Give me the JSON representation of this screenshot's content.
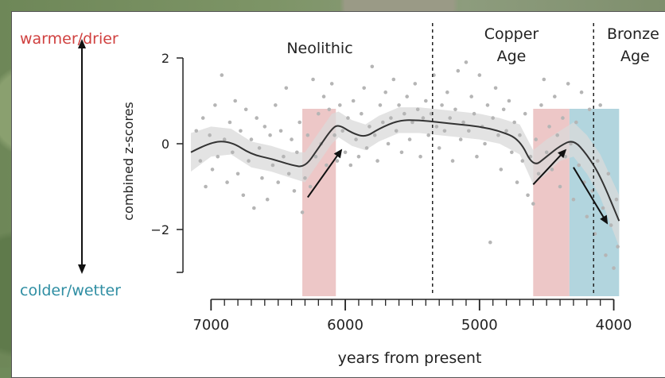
{
  "side_labels": {
    "top": "warmer/drier",
    "bottom": "colder/wetter"
  },
  "period_labels": {
    "neolithic": "Neolithic",
    "copper_line1": "Copper",
    "copper_line2": "Age",
    "bronze_line1": "Bronze",
    "bronze_line2": "Age"
  },
  "colors": {
    "warm_band": "#e8b9b9",
    "cold_band": "#9fcad6",
    "ci_band": "#d9d9d9",
    "points": "#b5b5b5",
    "line": "#333333",
    "warm_text": "#d0403f",
    "cold_text": "#2f8ea3"
  },
  "chart_data": {
    "type": "scatter",
    "xlabel": "years from present",
    "ylabel": "combined z-scores",
    "xlim": [
      7150,
      3950
    ],
    "ylim": [
      -3.0,
      2.0
    ],
    "x_ticks": [
      7000,
      6000,
      5000,
      4000
    ],
    "y_ticks": [
      2,
      0,
      -2
    ],
    "x_tick_labels": [
      "7000",
      "6000",
      "5000",
      "4000"
    ],
    "y_tick_labels": [
      "2",
      "0",
      "−2"
    ],
    "period_boundaries": [
      5350,
      4150
    ],
    "shaded_intervals": [
      {
        "kind": "warming",
        "from": 6320,
        "to": 6070
      },
      {
        "kind": "warming",
        "from": 4600,
        "to": 4330
      },
      {
        "kind": "cooling",
        "from": 4330,
        "to": 3960
      }
    ],
    "smooth_line": {
      "x": [
        7150,
        7000,
        6850,
        6700,
        6550,
        6400,
        6300,
        6200,
        6100,
        6050,
        5950,
        5850,
        5750,
        5600,
        5450,
        5300,
        5150,
        5000,
        4850,
        4700,
        4600,
        4500,
        4400,
        4300,
        4200,
        4100,
        3960
      ],
      "y": [
        -0.2,
        0.05,
        0.05,
        -0.25,
        -0.35,
        -0.5,
        -0.55,
        -0.1,
        0.35,
        0.45,
        0.25,
        0.15,
        0.35,
        0.55,
        0.55,
        0.5,
        0.45,
        0.4,
        0.3,
        0.1,
        -0.55,
        -0.3,
        -0.05,
        0.1,
        -0.25,
        -0.75,
        -1.8
      ]
    },
    "ci_halfwidth": [
      0.45,
      0.35,
      0.3,
      0.3,
      0.3,
      0.3,
      0.35,
      0.35,
      0.35,
      0.3,
      0.3,
      0.3,
      0.3,
      0.3,
      0.3,
      0.3,
      0.3,
      0.3,
      0.3,
      0.35,
      0.4,
      0.4,
      0.35,
      0.4,
      0.45,
      0.5,
      0.6
    ],
    "arrows": [
      {
        "from": [
          6280,
          -1.25
        ],
        "to": [
          6030,
          -0.15
        ]
      },
      {
        "from": [
          4600,
          -0.95
        ],
        "to": [
          4360,
          -0.15
        ]
      },
      {
        "from": [
          4300,
          -0.55
        ],
        "to": [
          4050,
          -1.85
        ]
      }
    ],
    "points": [
      [
        7110,
        0.3
      ],
      [
        7080,
        -0.4
      ],
      [
        7060,
        0.6
      ],
      [
        7040,
        -1.0
      ],
      [
        7010,
        0.2
      ],
      [
        6990,
        -0.6
      ],
      [
        6970,
        0.9
      ],
      [
        6950,
        -0.3
      ],
      [
        6920,
        1.6
      ],
      [
        6900,
        0.1
      ],
      [
        6880,
        -0.9
      ],
      [
        6860,
        0.5
      ],
      [
        6840,
        -0.2
      ],
      [
        6820,
        1.0
      ],
      [
        6800,
        -0.7
      ],
      [
        6780,
        0.3
      ],
      [
        6760,
        -1.2
      ],
      [
        6740,
        0.8
      ],
      [
        6720,
        -0.4
      ],
      [
        6700,
        0.1
      ],
      [
        6680,
        -1.5
      ],
      [
        6660,
        0.6
      ],
      [
        6640,
        -0.1
      ],
      [
        6620,
        -0.8
      ],
      [
        6600,
        0.4
      ],
      [
        6580,
        -1.3
      ],
      [
        6560,
        0.2
      ],
      [
        6540,
        -0.5
      ],
      [
        6520,
        0.9
      ],
      [
        6500,
        -0.9
      ],
      [
        6480,
        0.3
      ],
      [
        6460,
        -0.3
      ],
      [
        6440,
        1.3
      ],
      [
        6420,
        -0.7
      ],
      [
        6400,
        0.1
      ],
      [
        6380,
        -1.1
      ],
      [
        6360,
        -0.2
      ],
      [
        6340,
        0.5
      ],
      [
        6320,
        -1.6
      ],
      [
        6300,
        -0.8
      ],
      [
        6280,
        0.2
      ],
      [
        6260,
        -1.0
      ],
      [
        6240,
        1.5
      ],
      [
        6220,
        -0.3
      ],
      [
        6200,
        0.7
      ],
      [
        6180,
        0.0
      ],
      [
        6160,
        1.1
      ],
      [
        6140,
        -0.5
      ],
      [
        6120,
        0.8
      ],
      [
        6100,
        1.4
      ],
      [
        6080,
        0.2
      ],
      [
        6060,
        -0.4
      ],
      [
        6040,
        0.9
      ],
      [
        6020,
        0.3
      ],
      [
        6000,
        -0.2
      ],
      [
        5980,
        0.6
      ],
      [
        5960,
        -0.5
      ],
      [
        5940,
        1.0
      ],
      [
        5920,
        0.1
      ],
      [
        5900,
        -0.3
      ],
      [
        5880,
        0.7
      ],
      [
        5860,
        1.3
      ],
      [
        5840,
        -0.1
      ],
      [
        5820,
        0.4
      ],
      [
        5800,
        1.8
      ],
      [
        5780,
        0.2
      ],
      [
        5760,
        -0.4
      ],
      [
        5740,
        0.9
      ],
      [
        5720,
        0.5
      ],
      [
        5700,
        1.2
      ],
      [
        5680,
        0.0
      ],
      [
        5660,
        0.6
      ],
      [
        5640,
        1.5
      ],
      [
        5620,
        0.3
      ],
      [
        5600,
        0.9
      ],
      [
        5580,
        -0.2
      ],
      [
        5560,
        0.7
      ],
      [
        5540,
        1.1
      ],
      [
        5520,
        0.1
      ],
      [
        5500,
        0.5
      ],
      [
        5480,
        1.4
      ],
      [
        5460,
        0.8
      ],
      [
        5440,
        -0.3
      ],
      [
        5420,
        0.6
      ],
      [
        5400,
        1.0
      ],
      [
        5380,
        0.2
      ],
      [
        5360,
        0.7
      ],
      [
        5340,
        1.6
      ],
      [
        5320,
        0.4
      ],
      [
        5300,
        -0.1
      ],
      [
        5280,
        0.9
      ],
      [
        5260,
        0.3
      ],
      [
        5240,
        1.2
      ],
      [
        5220,
        0.6
      ],
      [
        5200,
        -0.4
      ],
      [
        5180,
        0.8
      ],
      [
        5160,
        1.7
      ],
      [
        5140,
        0.1
      ],
      [
        5120,
        0.5
      ],
      [
        5100,
        1.9
      ],
      [
        5080,
        0.3
      ],
      [
        5060,
        1.1
      ],
      [
        5040,
        0.7
      ],
      [
        5020,
        -0.3
      ],
      [
        5000,
        1.6
      ],
      [
        4980,
        0.4
      ],
      [
        4960,
        0.0
      ],
      [
        4940,
        0.9
      ],
      [
        4920,
        -2.3
      ],
      [
        4900,
        0.6
      ],
      [
        4880,
        1.3
      ],
      [
        4860,
        0.2
      ],
      [
        4840,
        -0.6
      ],
      [
        4820,
        0.8
      ],
      [
        4800,
        0.3
      ],
      [
        4780,
        1.0
      ],
      [
        4760,
        -0.2
      ],
      [
        4740,
        0.5
      ],
      [
        4720,
        -0.9
      ],
      [
        4700,
        0.2
      ],
      [
        4680,
        -0.4
      ],
      [
        4660,
        0.7
      ],
      [
        4640,
        -1.2
      ],
      [
        4620,
        -0.3
      ],
      [
        4600,
        -1.4
      ],
      [
        4580,
        0.1
      ],
      [
        4560,
        -0.7
      ],
      [
        4540,
        0.9
      ],
      [
        4520,
        1.5
      ],
      [
        4500,
        -0.2
      ],
      [
        4480,
        0.4
      ],
      [
        4460,
        -0.6
      ],
      [
        4440,
        1.1
      ],
      [
        4420,
        0.2
      ],
      [
        4400,
        -1.0
      ],
      [
        4380,
        0.6
      ],
      [
        4360,
        -0.3
      ],
      [
        4340,
        1.4
      ],
      [
        4320,
        0.0
      ],
      [
        4300,
        -1.3
      ],
      [
        4280,
        0.5
      ],
      [
        4260,
        -0.5
      ],
      [
        4240,
        1.2
      ],
      [
        4220,
        -0.9
      ],
      [
        4200,
        -1.7
      ],
      [
        4180,
        0.8
      ],
      [
        4160,
        -1.1
      ],
      [
        4140,
        -2.1
      ],
      [
        4120,
        -0.4
      ],
      [
        4100,
        0.9
      ],
      [
        4080,
        -1.5
      ],
      [
        4060,
        -2.6
      ],
      [
        4040,
        -0.7
      ],
      [
        4020,
        -1.9
      ],
      [
        4000,
        -2.9
      ],
      [
        3980,
        -1.3
      ],
      [
        3970,
        -2.4
      ]
    ]
  }
}
